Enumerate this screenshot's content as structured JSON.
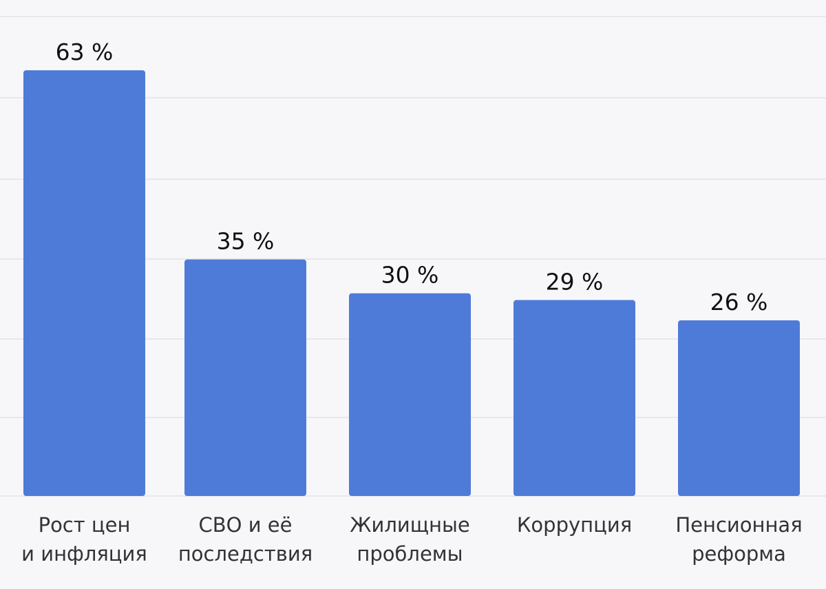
{
  "chart_data": {
    "type": "bar",
    "categories": [
      [
        "Рост цен",
        "и инфляция"
      ],
      [
        "СВО и её",
        "последствия"
      ],
      [
        "Жилищные",
        "проблемы"
      ],
      [
        "Коррупция"
      ],
      [
        "Пенсионная",
        "реформа"
      ]
    ],
    "values": [
      63,
      35,
      30,
      29,
      26
    ],
    "value_labels": [
      "63 %",
      "35 %",
      "30 %",
      "29 %",
      "26 %"
    ],
    "ylim": [
      0,
      70
    ],
    "grid": true,
    "bar_color": "#4f7bd8",
    "background": "#f7f7f9",
    "grid_color": "#dedfe4"
  }
}
